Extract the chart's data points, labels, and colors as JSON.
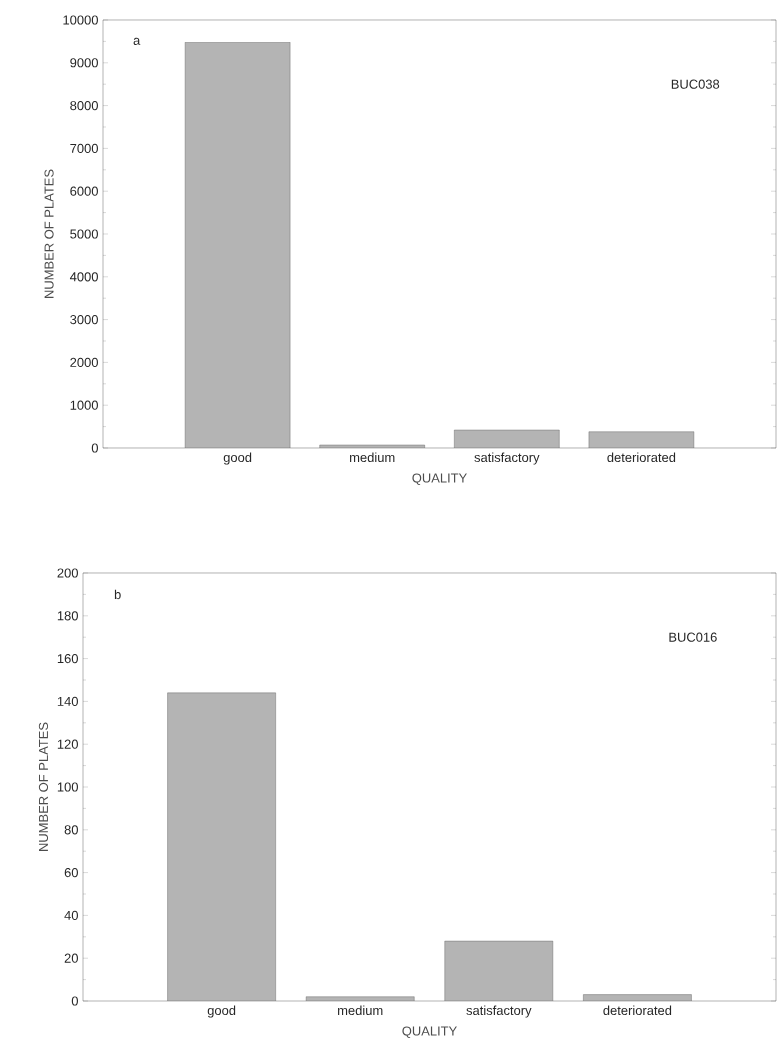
{
  "chart_data": [
    {
      "type": "bar",
      "annotations": [
        "a",
        "BUC038"
      ],
      "xlabel": "QUALITY",
      "ylabel": "NUMBER OF PLATES",
      "categories": [
        "good",
        "medium",
        "satisfactory",
        "deteriorated"
      ],
      "values": [
        9480,
        70,
        420,
        380
      ],
      "color": "#b4b4b4",
      "ylim": [
        0,
        10000
      ],
      "yticks": [
        0,
        1000,
        2000,
        3000,
        4000,
        5000,
        6000,
        7000,
        8000,
        9000,
        10000
      ],
      "grid": false
    },
    {
      "type": "bar",
      "annotations": [
        "b",
        "BUC016"
      ],
      "xlabel": "QUALITY",
      "ylabel": "NUMBER OF PLATES",
      "categories": [
        "good",
        "medium",
        "satisfactory",
        "deteriorated"
      ],
      "values": [
        144,
        2,
        28,
        3
      ],
      "color": "#b4b4b4",
      "ylim": [
        0,
        200
      ],
      "yticks": [
        0,
        20,
        40,
        60,
        80,
        100,
        120,
        140,
        160,
        180,
        200
      ],
      "grid": false
    }
  ]
}
